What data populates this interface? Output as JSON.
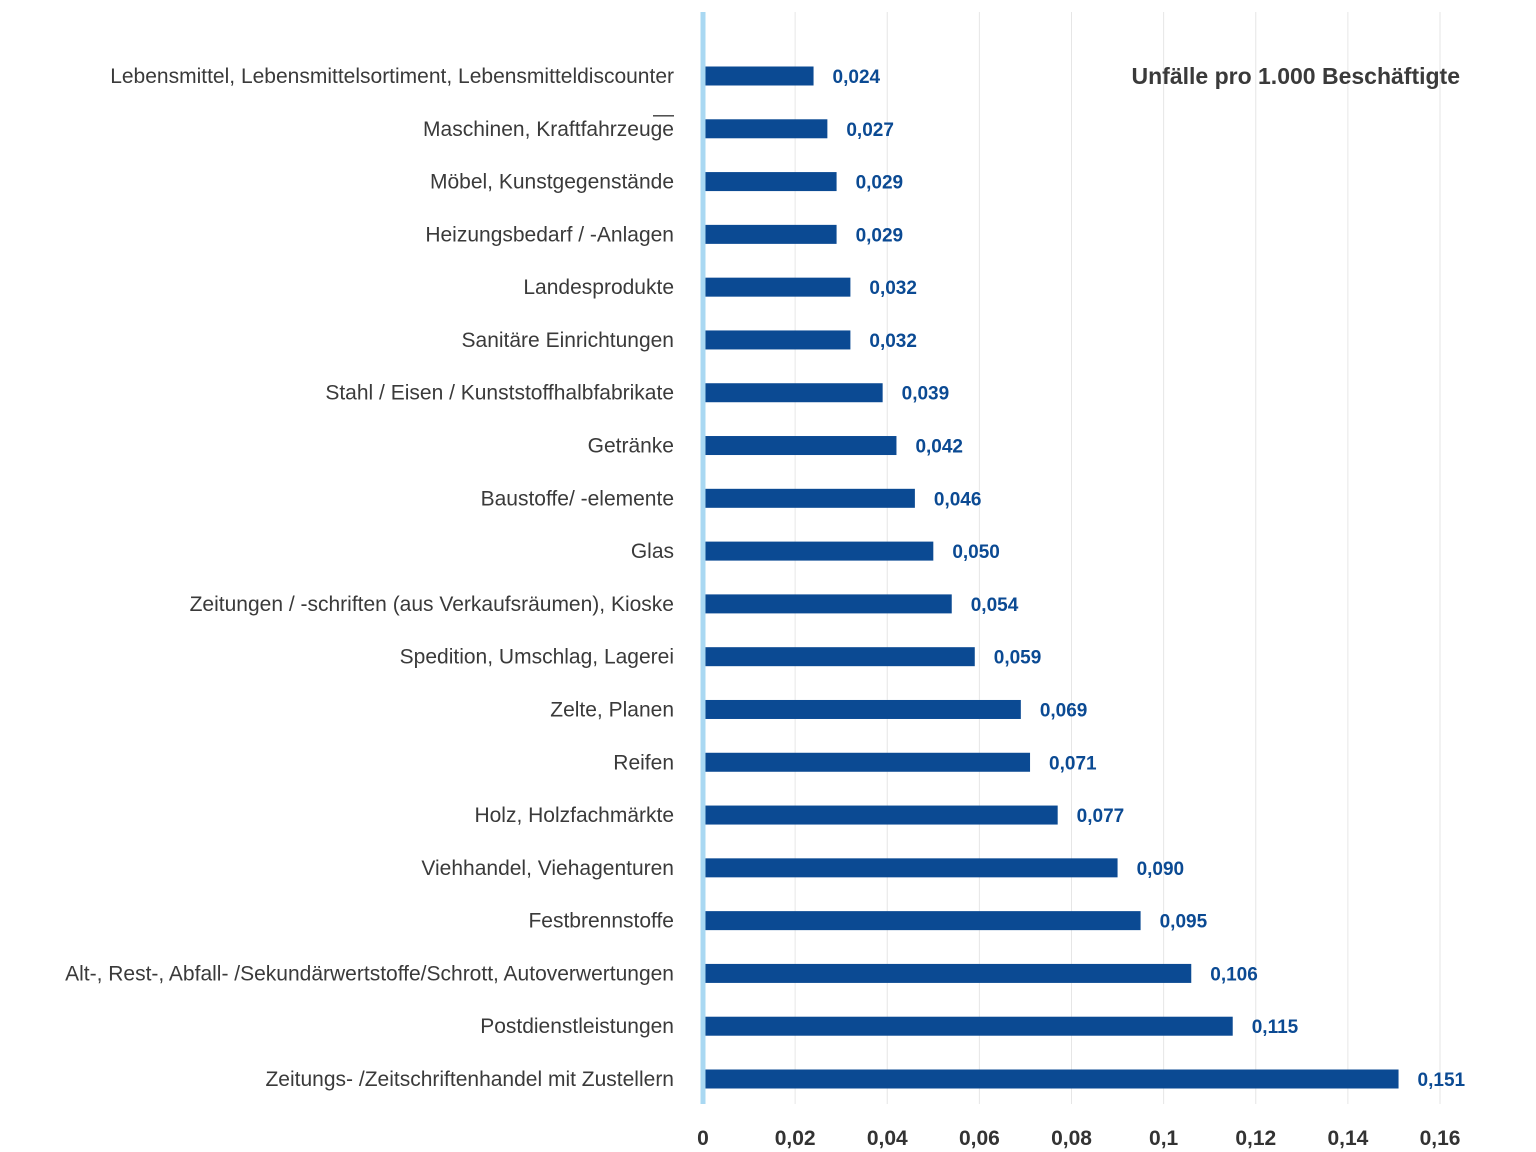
{
  "chart_data": {
    "type": "bar",
    "orientation": "horizontal",
    "title": "Unfälle pro 1.000 Beschäftigte",
    "categories": [
      "Lebensmittel, Lebensmittelsortiment, Lebensmitteldiscounter\n—",
      "Maschinen, Kraftfahrzeuge",
      "Möbel, Kunstgegenstände",
      "Heizungsbedarf / -Anlagen",
      "Landesprodukte",
      "Sanitäre Einrichtungen",
      "Stahl / Eisen / Kunststoffhalbfabrikate",
      "Getränke",
      "Baustoffe/ -elemente",
      "Glas",
      "Zeitungen / -schriften (aus Verkaufsräumen), Kioske",
      "Spedition, Umschlag, Lagerei",
      "Zelte, Planen",
      "Reifen",
      "Holz, Holzfachmärkte",
      "Viehhandel, Viehagenturen",
      "Festbrennstoffe",
      "Alt-, Rest-, Abfall- /Sekundärwertstoffe/Schrott, Autoverwertungen",
      "Postdienstleistungen",
      "Zeitungs- /Zeitschriftenhandel mit Zustellern"
    ],
    "values": [
      0.024,
      0.027,
      0.029,
      0.029,
      0.032,
      0.032,
      0.039,
      0.042,
      0.046,
      0.05,
      0.054,
      0.059,
      0.069,
      0.071,
      0.077,
      0.09,
      0.095,
      0.106,
      0.115,
      0.151
    ],
    "value_labels": [
      "0,024",
      "0,027",
      "0,029",
      "0,029",
      "0,032",
      "0,032",
      "0,039",
      "0,042",
      "0,046",
      "0,050",
      "0,054",
      "0,059",
      "0,069",
      "0,071",
      "0,077",
      "0,090",
      "0,095",
      "0,106",
      "0,115",
      "0,151"
    ],
    "xlim": [
      0,
      0.16
    ],
    "x_ticks": [
      0,
      0.02,
      0.04,
      0.06,
      0.08,
      0.1,
      0.12,
      0.14,
      0.16
    ],
    "x_tick_labels": [
      "0",
      "0,02",
      "0,04",
      "0,06",
      "0,08",
      "0,1",
      "0,12",
      "0,14",
      "0,16"
    ],
    "grid": "vertical",
    "colors": {
      "bar": "#0b4a93",
      "value_label": "#0b4a93",
      "axis": "#a9d8f2",
      "grid": "#e6e6e6",
      "text": "#3a3a3a"
    }
  }
}
